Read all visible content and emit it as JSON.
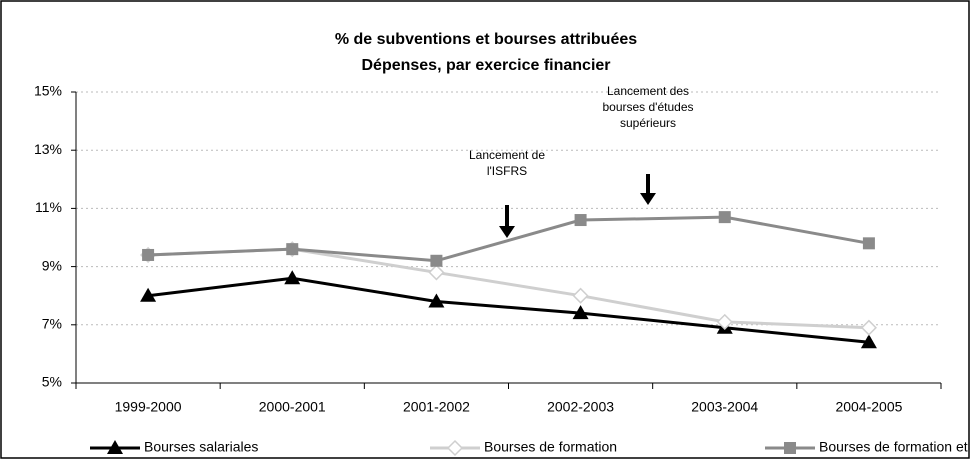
{
  "chart_data": {
    "type": "line",
    "title": "% de subventions et bourses attribuées",
    "subtitle": "Dépenses, par exercice financier",
    "categories": [
      "1999-2000",
      "2000-2001",
      "2001-2002",
      "2002-2003",
      "2003-2004",
      "2004-2005"
    ],
    "series": [
      {
        "name": "Bourses salariales",
        "color": "#000000",
        "marker": "triangle",
        "values": [
          8.0,
          8.6,
          7.8,
          7.4,
          6.9,
          6.4
        ]
      },
      {
        "name": "Bourses de formation",
        "color": "#cfcfcf",
        "marker": "diamond",
        "values": [
          9.4,
          9.6,
          8.8,
          8.0,
          7.1,
          6.9
        ]
      },
      {
        "name": "Bourses de formation et ISFRS",
        "color": "#8a8a8a",
        "marker": "square",
        "values": [
          9.4,
          9.6,
          9.2,
          10.6,
          10.7,
          9.8
        ]
      }
    ],
    "ylim": [
      5,
      15
    ],
    "yticks": [
      {
        "value": 5,
        "label": "5%"
      },
      {
        "value": 7,
        "label": "7%"
      },
      {
        "value": 9,
        "label": "9%"
      },
      {
        "value": 11,
        "label": "11%"
      },
      {
        "value": 13,
        "label": "13%"
      },
      {
        "value": 15,
        "label": "15%"
      }
    ],
    "grid": true,
    "legend": "bottom",
    "annotations": [
      {
        "lines": [
          "Lancement de",
          "l'ISFRS"
        ]
      },
      {
        "lines": [
          "Lancement des",
          "bourses d'études",
          "supérieurs"
        ]
      }
    ]
  }
}
